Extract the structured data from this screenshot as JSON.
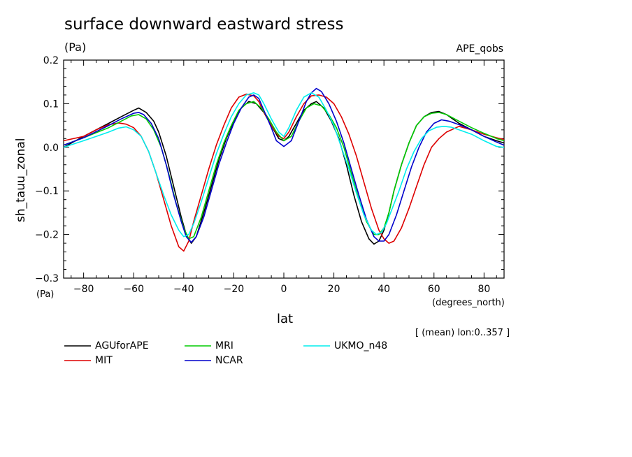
{
  "chart_data": {
    "type": "line",
    "title": "surface downward eastward stress",
    "title_unit": "(Pa)",
    "run_label": "APE_qobs",
    "ylabel": "sh_tauu_zonal",
    "yunit": "(Pa)",
    "xlabel": "lat",
    "xunit": "(degrees_north)",
    "note": "[ (mean) lon:0..357 ]",
    "xlim": [
      -88,
      88
    ],
    "ylim": [
      -0.3,
      0.2
    ],
    "x_ticks": [
      -80,
      -60,
      -40,
      -20,
      0,
      20,
      40,
      60,
      80
    ],
    "x_tick_labels": [
      "−80",
      "−60",
      "−40",
      "−20",
      "0",
      "20",
      "40",
      "60",
      "80"
    ],
    "y_ticks": [
      -0.3,
      -0.2,
      -0.1,
      0.0,
      0.1,
      0.2
    ],
    "y_tick_labels": [
      "−0.3",
      "−0.2",
      "−0.1",
      "0.0",
      "0.1",
      "0.2"
    ],
    "series": [
      {
        "name": "AGUforAPE",
        "color": "#000000",
        "x": [
          -88,
          -80,
          -70,
          -65,
          -60,
          -58,
          -55,
          -52,
          -50,
          -47,
          -44,
          -41,
          -39,
          -37,
          -35,
          -32,
          -29,
          -26,
          -23,
          -20,
          -17,
          -14,
          -11,
          -8,
          -5,
          -2,
          0,
          2,
          5,
          8,
          11,
          13,
          16,
          19,
          22,
          25,
          28,
          31,
          34,
          36,
          38,
          40,
          42,
          44,
          47,
          50,
          53,
          56,
          59,
          62,
          65,
          70,
          75,
          80,
          85,
          88
        ],
        "y": [
          0.0,
          0.025,
          0.055,
          0.07,
          0.085,
          0.09,
          0.08,
          0.06,
          0.035,
          -0.02,
          -0.09,
          -0.16,
          -0.2,
          -0.22,
          -0.205,
          -0.15,
          -0.09,
          -0.03,
          0.02,
          0.06,
          0.09,
          0.105,
          0.1,
          0.08,
          0.05,
          0.02,
          0.015,
          0.025,
          0.055,
          0.085,
          0.1,
          0.105,
          0.09,
          0.06,
          0.02,
          -0.04,
          -0.11,
          -0.17,
          -0.21,
          -0.222,
          -0.215,
          -0.19,
          -0.15,
          -0.1,
          -0.04,
          0.01,
          0.05,
          0.07,
          0.08,
          0.082,
          0.075,
          0.055,
          0.04,
          0.025,
          0.015,
          0.01
        ]
      },
      {
        "name": "MIT",
        "color": "#dd0000",
        "x": [
          -88,
          -80,
          -75,
          -70,
          -66,
          -63,
          -60,
          -57,
          -54,
          -51,
          -48,
          -45,
          -42,
          -40,
          -38,
          -36,
          -33,
          -30,
          -27,
          -24,
          -21,
          -18,
          -15,
          -12,
          -10,
          -8,
          -5,
          -2,
          0,
          2,
          5,
          8,
          11,
          14,
          17,
          20,
          23,
          26,
          29,
          32,
          35,
          38,
          40,
          42,
          44,
          47,
          50,
          53,
          56,
          59,
          62,
          65,
          70,
          75,
          80,
          85,
          88
        ],
        "y": [
          0.015,
          0.025,
          0.04,
          0.052,
          0.056,
          0.053,
          0.045,
          0.025,
          -0.01,
          -0.06,
          -0.12,
          -0.18,
          -0.228,
          -0.238,
          -0.215,
          -0.17,
          -0.11,
          -0.05,
          0.005,
          0.05,
          0.09,
          0.115,
          0.122,
          0.118,
          0.105,
          0.08,
          0.05,
          0.025,
          0.02,
          0.035,
          0.07,
          0.1,
          0.118,
          0.12,
          0.115,
          0.1,
          0.07,
          0.03,
          -0.02,
          -0.08,
          -0.14,
          -0.19,
          -0.21,
          -0.22,
          -0.215,
          -0.185,
          -0.14,
          -0.09,
          -0.04,
          0.0,
          0.02,
          0.035,
          0.048,
          0.04,
          0.03,
          0.022,
          0.018
        ]
      },
      {
        "name": "MRI",
        "color": "#00cc00",
        "x": [
          -88,
          -80,
          -70,
          -65,
          -61,
          -58,
          -55,
          -52,
          -49,
          -46,
          -43,
          -40,
          -38,
          -36,
          -33,
          -30,
          -27,
          -24,
          -21,
          -18,
          -15,
          -12,
          -9,
          -6,
          -3,
          0,
          3,
          6,
          9,
          12,
          15,
          18,
          21,
          24,
          27,
          30,
          33,
          36,
          38,
          40,
          42,
          44,
          47,
          50,
          53,
          56,
          59,
          62,
          65,
          70,
          75,
          80,
          85,
          88
        ],
        "y": [
          0.005,
          0.022,
          0.045,
          0.06,
          0.072,
          0.075,
          0.065,
          0.04,
          0.0,
          -0.06,
          -0.13,
          -0.185,
          -0.21,
          -0.205,
          -0.16,
          -0.1,
          -0.04,
          0.01,
          0.05,
          0.085,
          0.1,
          0.105,
          0.09,
          0.065,
          0.035,
          0.015,
          0.025,
          0.06,
          0.09,
          0.1,
          0.095,
          0.075,
          0.045,
          0.0,
          -0.06,
          -0.12,
          -0.17,
          -0.2,
          -0.2,
          -0.185,
          -0.15,
          -0.1,
          -0.04,
          0.01,
          0.05,
          0.07,
          0.078,
          0.08,
          0.075,
          0.06,
          0.045,
          0.032,
          0.02,
          0.015
        ]
      },
      {
        "name": "NCAR",
        "color": "#0000cc",
        "x": [
          -88,
          -80,
          -70,
          -65,
          -60,
          -58,
          -56,
          -53,
          -50,
          -47,
          -44,
          -41,
          -39,
          -37,
          -35,
          -32,
          -29,
          -26,
          -23,
          -20,
          -17,
          -14,
          -12,
          -10,
          -8,
          -5,
          -3,
          0,
          3,
          6,
          9,
          11,
          13,
          15,
          18,
          21,
          24,
          27,
          30,
          33,
          36,
          38,
          40,
          42,
          45,
          48,
          51,
          54,
          57,
          60,
          63,
          66,
          70,
          75,
          80,
          85,
          88
        ],
        "y": [
          0.005,
          0.022,
          0.05,
          0.065,
          0.078,
          0.08,
          0.075,
          0.055,
          0.02,
          -0.04,
          -0.11,
          -0.17,
          -0.205,
          -0.218,
          -0.205,
          -0.16,
          -0.1,
          -0.04,
          0.01,
          0.055,
          0.09,
          0.115,
          0.12,
          0.112,
          0.085,
          0.045,
          0.015,
          0.002,
          0.015,
          0.06,
          0.105,
          0.125,
          0.135,
          0.128,
          0.1,
          0.06,
          0.01,
          -0.05,
          -0.11,
          -0.165,
          -0.205,
          -0.215,
          -0.215,
          -0.2,
          -0.155,
          -0.1,
          -0.045,
          0.0,
          0.035,
          0.055,
          0.063,
          0.06,
          0.052,
          0.04,
          0.025,
          0.012,
          0.005
        ]
      },
      {
        "name": "UKMO_n48",
        "color": "#00eeee",
        "x": [
          -88,
          -80,
          -75,
          -70,
          -66,
          -63,
          -60,
          -57,
          -54,
          -51,
          -48,
          -45,
          -42,
          -40,
          -38,
          -36,
          -33,
          -30,
          -27,
          -24,
          -21,
          -18,
          -15,
          -12,
          -10,
          -8,
          -5,
          -2,
          0,
          2,
          5,
          8,
          11,
          14,
          17,
          20,
          23,
          26,
          29,
          32,
          35,
          37,
          39,
          41,
          43,
          46,
          49,
          52,
          55,
          58,
          61,
          64,
          67,
          70,
          75,
          80,
          85,
          88
        ],
        "y": [
          0.0,
          0.015,
          0.025,
          0.035,
          0.044,
          0.047,
          0.04,
          0.025,
          -0.01,
          -0.06,
          -0.11,
          -0.155,
          -0.19,
          -0.205,
          -0.2,
          -0.175,
          -0.125,
          -0.07,
          -0.015,
          0.03,
          0.07,
          0.1,
          0.12,
          0.125,
          0.12,
          0.1,
          0.065,
          0.035,
          0.025,
          0.045,
          0.085,
          0.115,
          0.125,
          0.115,
          0.085,
          0.05,
          0.0,
          -0.05,
          -0.105,
          -0.155,
          -0.19,
          -0.2,
          -0.195,
          -0.175,
          -0.145,
          -0.1,
          -0.05,
          -0.01,
          0.02,
          0.038,
          0.046,
          0.048,
          0.046,
          0.04,
          0.03,
          0.015,
          0.002,
          0.0
        ]
      }
    ]
  }
}
